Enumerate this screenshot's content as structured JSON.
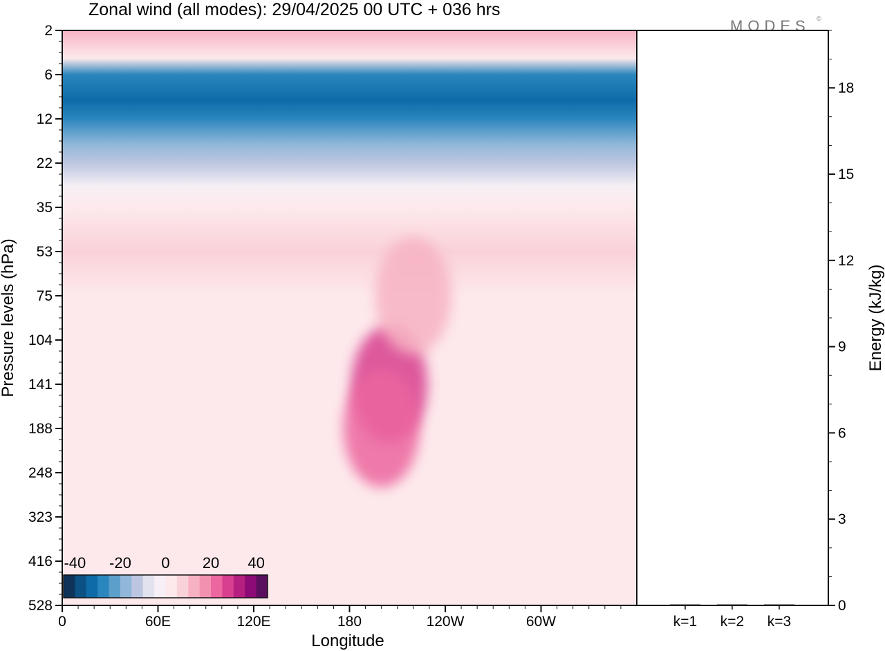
{
  "title": "Zonal wind (all modes):  29/04/2025  00 UTC  + 036 hrs",
  "logo": "MODES",
  "colors": {
    "axis": "#111111",
    "panel_bg": "#ffffff"
  },
  "chart_data": [
    {
      "type": "heatmap",
      "title": "Zonal wind (all modes):  29/04/2025  00 UTC  + 036 hrs",
      "xlabel": "Longitude",
      "ylabel": "Pressure levels (hPa)",
      "xticks": [
        "0",
        "60E",
        "120E",
        "180",
        "120W",
        "60W"
      ],
      "xlim": [
        0,
        360
      ],
      "yticks": [
        "2",
        "6",
        "12",
        "22",
        "35",
        "53",
        "75",
        "104",
        "141",
        "188",
        "248",
        "323",
        "416",
        "528"
      ],
      "colorbar": {
        "ticks": [
          "-40",
          "-20",
          "0",
          "20",
          "40"
        ],
        "range": [
          -45,
          45
        ],
        "colors": [
          "#0e3459",
          "#0b5184",
          "#0f6ba8",
          "#2b86bd",
          "#5d9fcb",
          "#91b7d9",
          "#bdc6e0",
          "#e2e1ee",
          "#f6eff5",
          "#fde9ec",
          "#f9d2d8",
          "#f7b2c2",
          "#f391b0",
          "#ec669f",
          "#d83f8f",
          "#b51f80",
          "#8c0b74",
          "#5a0f5e"
        ]
      },
      "bands": [
        {
          "level": "2",
          "value": 10
        },
        {
          "level": "4",
          "value": 0
        },
        {
          "level": "6",
          "value": -30
        },
        {
          "level": "9",
          "value": -34
        },
        {
          "level": "12",
          "value": -27
        },
        {
          "level": "17",
          "value": -20
        },
        {
          "level": "22",
          "value": -12
        },
        {
          "level": "28",
          "value": -4
        },
        {
          "level": "35",
          "value": 3
        },
        {
          "level": "53",
          "value": 9
        },
        {
          "level": "75",
          "value": 3
        },
        {
          "level": "104",
          "value": 2
        },
        {
          "level": "141",
          "value": 3
        },
        {
          "level": "188",
          "value": 3
        },
        {
          "level": "248",
          "value": 2
        },
        {
          "level": "323",
          "value": 1
        },
        {
          "level": "416",
          "value": 0
        },
        {
          "level": "528",
          "value": 0
        }
      ],
      "features": [
        {
          "lon": 205,
          "level": "141",
          "value": 25
        },
        {
          "lon": 200,
          "level": "188",
          "value": 20
        },
        {
          "lon": 220,
          "level": "75",
          "value": 12
        }
      ]
    },
    {
      "type": "bar",
      "ylabel": "Energy (kJ/kg)",
      "categories": [
        "k=1",
        "k=2",
        "k=3"
      ],
      "values": [
        0.02,
        0.01,
        0.01
      ],
      "ylim": [
        0,
        20
      ],
      "yticks": [
        "0",
        "3",
        "6",
        "9",
        "12",
        "15",
        "18"
      ]
    }
  ]
}
